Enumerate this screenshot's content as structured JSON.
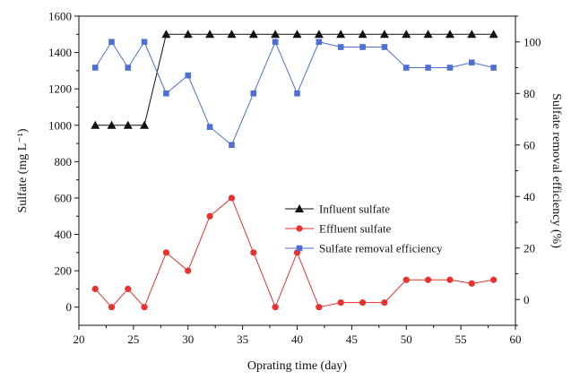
{
  "chart_data": {
    "type": "line",
    "xlabel": "Oprating time (day)",
    "ylabel_left": "Sulfate (mg L⁻¹)",
    "ylabel_right": "Sulfate removal efficiency (%)",
    "xlim": [
      20,
      60
    ],
    "ylim_left": [
      -100,
      1600
    ],
    "ylim_right": [
      -10,
      110
    ],
    "x_ticks": [
      20,
      25,
      30,
      35,
      40,
      45,
      50,
      55,
      60
    ],
    "y_left_ticks": [
      0,
      200,
      400,
      600,
      800,
      1000,
      1200,
      1400,
      1600
    ],
    "y_right_ticks": [
      0,
      20,
      40,
      60,
      80,
      100
    ],
    "legend_position": "center-right",
    "grid": false,
    "series": [
      {
        "name": "Influent sulfate",
        "axis": "left",
        "marker": "triangle",
        "color": "#111111",
        "x": [
          21.5,
          23,
          24.5,
          26,
          28,
          30,
          32,
          34,
          36,
          38,
          40,
          42,
          44,
          46,
          48,
          50,
          52,
          54,
          56,
          58
        ],
        "values": [
          1000,
          1000,
          1000,
          1000,
          1500,
          1500,
          1500,
          1500,
          1500,
          1500,
          1500,
          1500,
          1500,
          1500,
          1500,
          1500,
          1500,
          1500,
          1500,
          1500
        ]
      },
      {
        "name": "Effluent sulfate",
        "axis": "left",
        "marker": "circle",
        "color": "#e8322f",
        "x": [
          21.5,
          23,
          24.5,
          26,
          28,
          30,
          32,
          34,
          36,
          38,
          40,
          42,
          44,
          46,
          48,
          50,
          52,
          54,
          56,
          58
        ],
        "values": [
          100,
          0,
          100,
          0,
          300,
          200,
          500,
          600,
          300,
          0,
          300,
          0,
          25,
          25,
          25,
          150,
          150,
          150,
          130,
          150
        ]
      },
      {
        "name": "Sulfate removal efficiency",
        "axis": "right",
        "marker": "square",
        "color": "#4f6fd4",
        "x": [
          21.5,
          23,
          24.5,
          26,
          28,
          30,
          32,
          34,
          36,
          38,
          40,
          42,
          44,
          46,
          48,
          50,
          52,
          54,
          56,
          58
        ],
        "values": [
          90,
          100,
          90,
          100,
          80,
          87,
          67,
          60,
          80,
          100,
          80,
          100,
          98,
          98,
          98,
          90,
          90,
          90,
          92,
          90
        ]
      }
    ]
  }
}
